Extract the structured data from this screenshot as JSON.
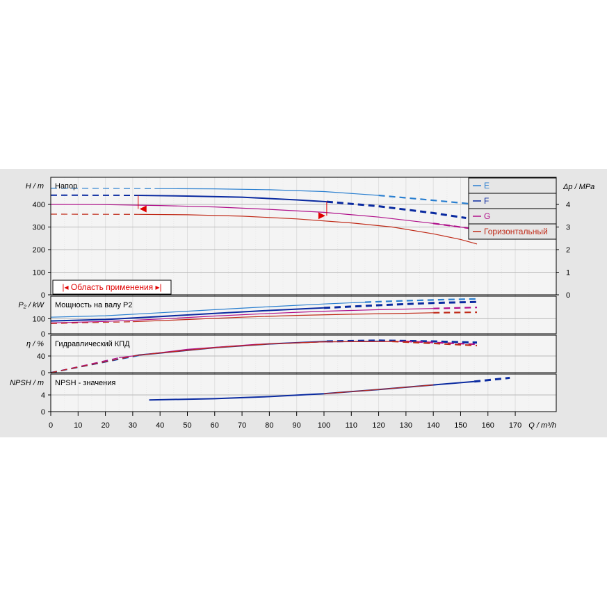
{
  "chart_data": {
    "type": "line",
    "x_axis": {
      "label": "Q / m³/h",
      "ticks": [
        0,
        10,
        20,
        30,
        40,
        50,
        60,
        70,
        80,
        90,
        100,
        110,
        120,
        130,
        140,
        150,
        160,
        170
      ],
      "range": [
        0,
        185
      ]
    },
    "legend": [
      {
        "name": "E",
        "color": "#2a7fd0"
      },
      {
        "name": "F",
        "color": "#0a2aa0"
      },
      {
        "name": "G",
        "color": "#b0108a"
      },
      {
        "name": "Горизонтальный",
        "color": "#c02a18"
      }
    ],
    "application_range": {
      "label": "Область применения",
      "h_marker": 380,
      "q_start": 32,
      "q_end": 101
    },
    "panels": [
      {
        "id": "head",
        "title": "Напор",
        "y_label": "H / m",
        "y_ticks": [
          0,
          100,
          200,
          300,
          400
        ],
        "y_range": [
          0,
          520
        ],
        "y2_label": "Δp / MPa",
        "y2_ticks": [
          0,
          1,
          2,
          3,
          4
        ],
        "series": [
          {
            "name": "E",
            "solid": [
              [
                38,
                470
              ],
              [
                60,
                469
              ],
              [
                80,
                465
              ],
              [
                100,
                457
              ],
              [
                120,
                440
              ]
            ],
            "dashed_before": [
              [
                0,
                472
              ],
              [
                38,
                470
              ]
            ],
            "dashed_after": [
              [
                120,
                440
              ],
              [
                140,
                418
              ],
              [
                156,
                400
              ]
            ]
          },
          {
            "name": "F",
            "solid": [
              [
                32,
                440
              ],
              [
                50,
                437
              ],
              [
                70,
                432
              ],
              [
                90,
                420
              ],
              [
                101,
                412
              ]
            ],
            "dashed_before": [
              [
                0,
                441
              ],
              [
                32,
                440
              ]
            ],
            "dashed_after": [
              [
                101,
                412
              ],
              [
                120,
                392
              ],
              [
                140,
                362
              ],
              [
                152,
                340
              ]
            ]
          },
          {
            "name": "G",
            "solid": [
              [
                0,
                400
              ],
              [
                20,
                399
              ],
              [
                40,
                395
              ],
              [
                60,
                389
              ],
              [
                80,
                378
              ],
              [
                100,
                365
              ],
              [
                120,
                344
              ],
              [
                140,
                316
              ],
              [
                156,
                290
              ]
            ],
            "dashed_before": [],
            "dashed_after": [
              [
                140,
                316
              ],
              [
                156,
                290
              ]
            ]
          },
          {
            "name": "Горизонтальный",
            "solid": [
              [
                32,
                356
              ],
              [
                50,
                354
              ],
              [
                70,
                348
              ],
              [
                90,
                336
              ],
              [
                110,
                318
              ],
              [
                125,
                300
              ],
              [
                140,
                270
              ],
              [
                150,
                245
              ],
              [
                156,
                225
              ]
            ],
            "dashed_before": [
              [
                0,
                357
              ],
              [
                32,
                356
              ]
            ],
            "dashed_after": []
          }
        ]
      },
      {
        "id": "power",
        "title": "Мощность на валу P2",
        "y_label": "P₂ / kW",
        "y_ticks": [
          0,
          100
        ],
        "y_range": [
          0,
          250
        ],
        "series": [
          {
            "name": "E",
            "solid": [
              [
                0,
                110
              ],
              [
                20,
                120
              ],
              [
                40,
                140
              ],
              [
                60,
                160
              ],
              [
                80,
                180
              ],
              [
                100,
                198
              ],
              [
                115,
                210
              ]
            ],
            "dashed_before": [],
            "dashed_after": [
              [
                115,
                210
              ],
              [
                130,
                220
              ],
              [
                145,
                228
              ],
              [
                156,
                232
              ]
            ]
          },
          {
            "name": "F",
            "solid": [
              [
                0,
                85
              ],
              [
                20,
                95
              ],
              [
                40,
                115
              ],
              [
                60,
                135
              ],
              [
                80,
                155
              ],
              [
                100,
                172
              ]
            ],
            "dashed_before": [],
            "dashed_after": [
              [
                100,
                172
              ],
              [
                120,
                190
              ],
              [
                140,
                205
              ],
              [
                156,
                212
              ]
            ]
          },
          {
            "name": "G",
            "solid": [
              [
                0,
                72
              ],
              [
                20,
                82
              ],
              [
                40,
                98
              ],
              [
                60,
                118
              ],
              [
                80,
                135
              ],
              [
                100,
                150
              ],
              [
                120,
                160
              ],
              [
                140,
                168
              ]
            ],
            "dashed_before": [],
            "dashed_after": [
              [
                140,
                168
              ],
              [
                156,
                175
              ]
            ]
          },
          {
            "name": "Горизонтальный",
            "solid": [
              [
                30,
                80
              ],
              [
                50,
                95
              ],
              [
                70,
                110
              ],
              [
                90,
                122
              ],
              [
                110,
                130
              ],
              [
                130,
                136
              ],
              [
                140,
                140
              ]
            ],
            "dashed_before": [
              [
                0,
                68
              ],
              [
                30,
                80
              ]
            ],
            "dashed_after": [
              [
                140,
                140
              ],
              [
                156,
                143
              ]
            ]
          }
        ]
      },
      {
        "id": "efficiency",
        "title": "Гидравлический КПД",
        "y_label": "η / %",
        "y_ticks": [
          0,
          40
        ],
        "y_range": [
          0,
          90
        ],
        "series": [
          {
            "name": "E",
            "solid": [
              [
                35,
                44
              ],
              [
                60,
                60
              ],
              [
                80,
                69
              ],
              [
                100,
                74
              ],
              [
                120,
                76
              ]
            ],
            "dashed_before": [
              [
                0,
                0
              ],
              [
                35,
                44
              ]
            ],
            "dashed_after": [
              [
                120,
                76
              ],
              [
                140,
                75
              ],
              [
                156,
                73
              ]
            ]
          },
          {
            "name": "F",
            "solid": [
              [
                32,
                42
              ],
              [
                60,
                60
              ],
              [
                80,
                69
              ],
              [
                101,
                75
              ]
            ],
            "dashed_before": [
              [
                0,
                0
              ],
              [
                32,
                42
              ]
            ],
            "dashed_after": [
              [
                101,
                75
              ],
              [
                120,
                77
              ],
              [
                140,
                75
              ],
              [
                156,
                72
              ]
            ]
          },
          {
            "name": "G",
            "solid": [
              [
                25,
                36
              ],
              [
                50,
                56
              ],
              [
                75,
                68
              ],
              [
                100,
                74
              ],
              [
                130,
                75
              ]
            ],
            "dashed_before": [
              [
                0,
                0
              ],
              [
                25,
                36
              ]
            ],
            "dashed_after": [
              [
                130,
                75
              ],
              [
                156,
                68
              ]
            ]
          },
          {
            "name": "Горизонтальный",
            "solid": [
              [
                32,
                42
              ],
              [
                60,
                60
              ],
              [
                80,
                69
              ],
              [
                100,
                74
              ],
              [
                125,
                75
              ]
            ],
            "dashed_before": [
              [
                0,
                0
              ],
              [
                32,
                42
              ]
            ],
            "dashed_after": [
              [
                125,
                75
              ],
              [
                156,
                65
              ]
            ]
          }
        ]
      },
      {
        "id": "npsh",
        "title": "NPSH - значения",
        "y_label": "NPSH / m",
        "y_ticks": [
          0,
          4
        ],
        "y_range": [
          0,
          9
        ],
        "series": [
          {
            "name": "F",
            "solid": [
              [
                36,
                2.8
              ],
              [
                60,
                3.1
              ],
              [
                80,
                3.6
              ],
              [
                100,
                4.3
              ],
              [
                120,
                5.3
              ],
              [
                140,
                6.4
              ],
              [
                155,
                7.2
              ]
            ],
            "dashed_before": [],
            "dashed_after": [
              [
                155,
                7.2
              ],
              [
                168,
                8.1
              ]
            ]
          },
          {
            "name": "Горизонтальный",
            "solid": [
              [
                100,
                4.3
              ],
              [
                120,
                5.3
              ],
              [
                140,
                6.4
              ]
            ],
            "dashed_before": [],
            "dashed_after": []
          }
        ]
      }
    ]
  }
}
